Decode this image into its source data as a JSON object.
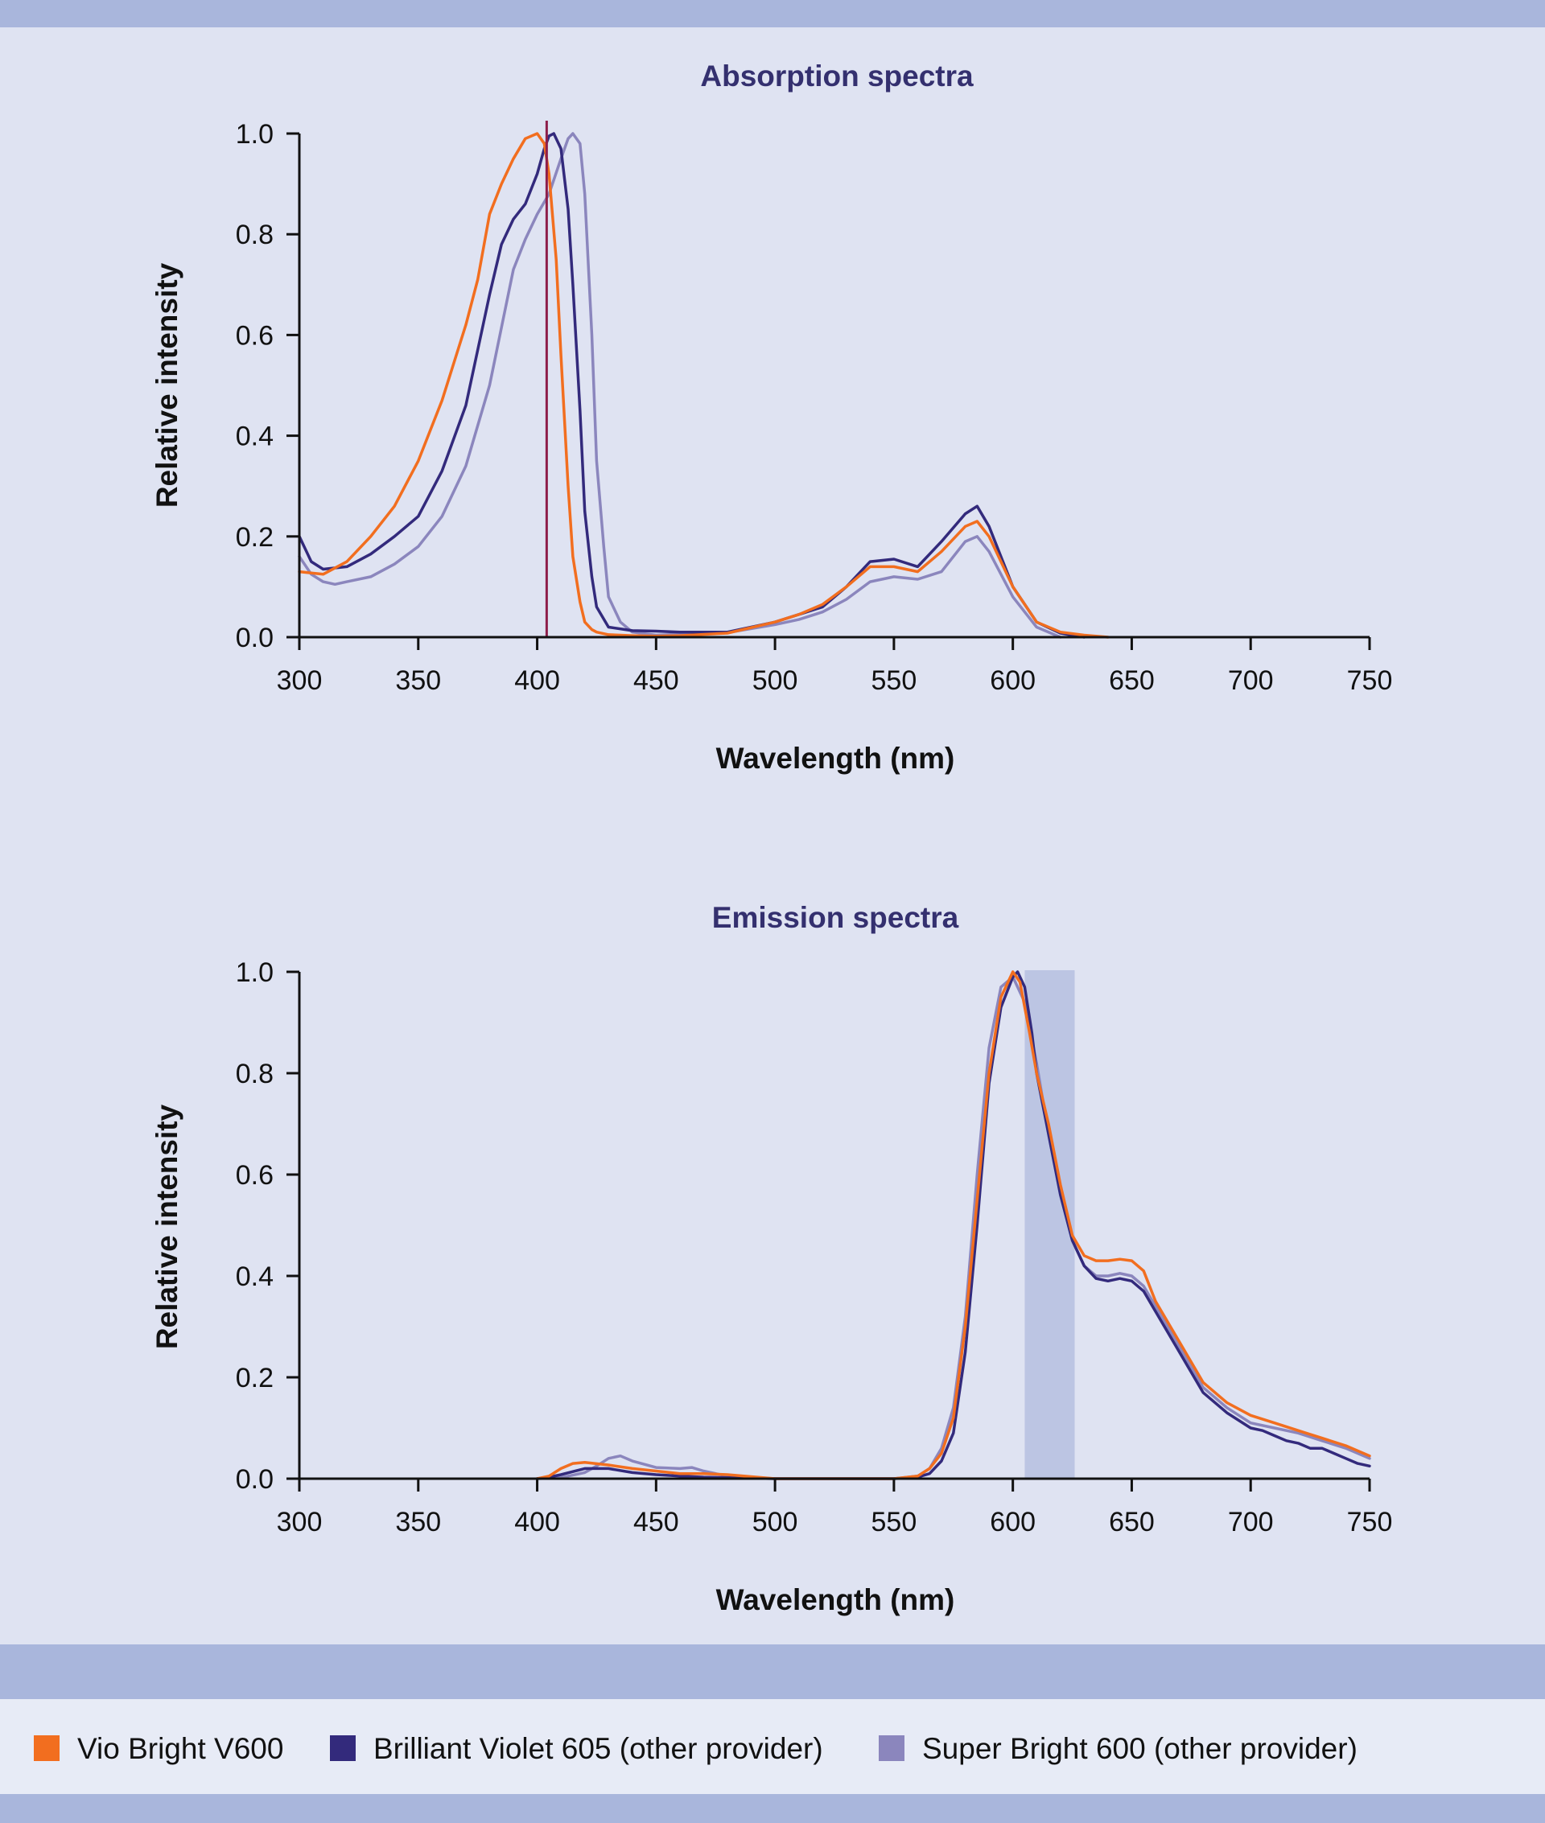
{
  "colors": {
    "vio": "#f26e1f",
    "bv605": "#332a7c",
    "sb600": "#8b86bd",
    "excitation_line": "#8e1e4a",
    "filter_band": "#bcc5e3"
  },
  "legend": [
    {
      "label": "Vio Bright V600",
      "color": "#f26e1f"
    },
    {
      "label": "Brilliant Violet 605 (other provider)",
      "color": "#332a7c"
    },
    {
      "label": "Super Bright 600 (other provider)",
      "color": "#8b86bd"
    }
  ],
  "chart_data": [
    {
      "type": "line",
      "title": "Absorption spectra",
      "xlabel": "Wavelength (nm)",
      "ylabel": "Relative intensity",
      "xlim": [
        300,
        750
      ],
      "ylim": [
        0,
        1.0
      ],
      "xticks": [
        "300",
        "350",
        "400",
        "450",
        "500",
        "550",
        "600",
        "650",
        "700",
        "750"
      ],
      "yticks": [
        "0.0",
        "0.2",
        "0.4",
        "0.6",
        "0.8",
        "1.0"
      ],
      "vline_nm": 404,
      "series": [
        {
          "name": "Vio Bright V600",
          "color": "#f26e1f",
          "x": [
            300,
            310,
            320,
            330,
            340,
            350,
            360,
            370,
            375,
            380,
            385,
            390,
            395,
            400,
            403,
            405,
            408,
            410,
            413,
            415,
            418,
            420,
            423,
            425,
            430,
            440,
            450,
            460,
            480,
            500,
            510,
            520,
            530,
            540,
            550,
            560,
            570,
            580,
            585,
            590,
            600,
            610,
            620,
            630,
            640
          ],
          "y": [
            0.13,
            0.125,
            0.15,
            0.2,
            0.26,
            0.35,
            0.47,
            0.62,
            0.71,
            0.84,
            0.9,
            0.95,
            0.99,
            1.0,
            0.98,
            0.92,
            0.75,
            0.56,
            0.3,
            0.16,
            0.07,
            0.03,
            0.015,
            0.01,
            0.005,
            0.003,
            0.002,
            0.003,
            0.008,
            0.03,
            0.045,
            0.065,
            0.1,
            0.14,
            0.14,
            0.13,
            0.17,
            0.22,
            0.23,
            0.2,
            0.1,
            0.03,
            0.01,
            0.004,
            0.0
          ]
        },
        {
          "name": "Brilliant Violet 605 (other provider)",
          "color": "#332a7c",
          "x": [
            300,
            305,
            310,
            320,
            330,
            340,
            350,
            360,
            370,
            380,
            385,
            390,
            395,
            400,
            403,
            405,
            407,
            410,
            413,
            415,
            418,
            420,
            423,
            425,
            430,
            440,
            450,
            460,
            480,
            500,
            510,
            520,
            530,
            540,
            550,
            560,
            570,
            580,
            585,
            590,
            600,
            610,
            620,
            630
          ],
          "y": [
            0.2,
            0.15,
            0.135,
            0.14,
            0.165,
            0.2,
            0.24,
            0.33,
            0.46,
            0.68,
            0.78,
            0.83,
            0.86,
            0.92,
            0.97,
            0.995,
            1.0,
            0.97,
            0.85,
            0.7,
            0.45,
            0.25,
            0.12,
            0.06,
            0.02,
            0.013,
            0.012,
            0.01,
            0.01,
            0.03,
            0.045,
            0.06,
            0.1,
            0.15,
            0.155,
            0.14,
            0.19,
            0.245,
            0.26,
            0.22,
            0.1,
            0.03,
            0.008,
            0.0
          ]
        },
        {
          "name": "Super Bright 600 (other provider)",
          "color": "#8b86bd",
          "x": [
            300,
            305,
            310,
            315,
            320,
            330,
            340,
            350,
            360,
            370,
            380,
            390,
            395,
            400,
            405,
            410,
            413,
            415,
            418,
            420,
            423,
            425,
            428,
            430,
            435,
            440,
            450,
            460,
            480,
            500,
            510,
            520,
            530,
            540,
            550,
            560,
            570,
            580,
            585,
            590,
            600,
            610,
            620
          ],
          "y": [
            0.16,
            0.125,
            0.11,
            0.105,
            0.11,
            0.12,
            0.145,
            0.18,
            0.24,
            0.34,
            0.5,
            0.73,
            0.79,
            0.84,
            0.88,
            0.95,
            0.99,
            1.0,
            0.98,
            0.88,
            0.6,
            0.35,
            0.18,
            0.08,
            0.03,
            0.01,
            0.004,
            0.006,
            0.009,
            0.025,
            0.035,
            0.05,
            0.075,
            0.11,
            0.12,
            0.115,
            0.13,
            0.19,
            0.2,
            0.17,
            0.08,
            0.02,
            0.0
          ]
        }
      ]
    },
    {
      "type": "line",
      "title": "Emission spectra",
      "xlabel": "Wavelength (nm)",
      "ylabel": "Relative intensity",
      "xlim": [
        300,
        750
      ],
      "ylim": [
        0,
        1.0
      ],
      "xticks": [
        "300",
        "350",
        "400",
        "450",
        "500",
        "550",
        "600",
        "650",
        "700",
        "750"
      ],
      "yticks": [
        "0.0",
        "0.2",
        "0.4",
        "0.6",
        "0.8",
        "1.0"
      ],
      "band_nm": [
        605,
        626
      ],
      "series": [
        {
          "name": "Vio Bright V600",
          "color": "#f26e1f",
          "x": [
            400,
            405,
            410,
            415,
            420,
            430,
            440,
            450,
            460,
            470,
            480,
            500,
            550,
            560,
            565,
            570,
            575,
            580,
            585,
            590,
            595,
            600,
            603,
            607,
            610,
            615,
            620,
            625,
            630,
            635,
            640,
            645,
            650,
            655,
            660,
            670,
            680,
            690,
            700,
            710,
            720,
            730,
            740,
            750
          ],
          "y": [
            0.0,
            0.005,
            0.02,
            0.03,
            0.032,
            0.027,
            0.02,
            0.015,
            0.01,
            0.01,
            0.008,
            0.0,
            0.0,
            0.005,
            0.02,
            0.05,
            0.12,
            0.3,
            0.55,
            0.8,
            0.95,
            1.0,
            0.98,
            0.88,
            0.8,
            0.7,
            0.58,
            0.48,
            0.44,
            0.43,
            0.43,
            0.433,
            0.43,
            0.41,
            0.35,
            0.27,
            0.19,
            0.15,
            0.125,
            0.11,
            0.095,
            0.08,
            0.065,
            0.045
          ]
        },
        {
          "name": "Brilliant Violet 605 (other provider)",
          "color": "#332a7c",
          "x": [
            400,
            405,
            410,
            420,
            430,
            440,
            450,
            460,
            470,
            480,
            500,
            550,
            560,
            565,
            570,
            575,
            580,
            585,
            590,
            595,
            600,
            602,
            605,
            608,
            610,
            615,
            620,
            625,
            630,
            635,
            640,
            645,
            650,
            655,
            660,
            670,
            680,
            690,
            700,
            705,
            710,
            715,
            720,
            725,
            730,
            735,
            740,
            745,
            750
          ],
          "y": [
            0.0,
            0.003,
            0.008,
            0.02,
            0.02,
            0.012,
            0.008,
            0.005,
            0.003,
            0.002,
            0.0,
            0.0,
            0.003,
            0.01,
            0.035,
            0.09,
            0.25,
            0.5,
            0.78,
            0.93,
            0.99,
            1.0,
            0.97,
            0.88,
            0.8,
            0.68,
            0.56,
            0.47,
            0.42,
            0.395,
            0.39,
            0.395,
            0.39,
            0.37,
            0.33,
            0.25,
            0.17,
            0.13,
            0.1,
            0.095,
            0.085,
            0.075,
            0.07,
            0.06,
            0.06,
            0.05,
            0.04,
            0.03,
            0.025
          ]
        },
        {
          "name": "Super Bright 600 (other provider)",
          "color": "#8b86bd",
          "x": [
            400,
            410,
            420,
            425,
            430,
            435,
            440,
            450,
            460,
            465,
            470,
            480,
            500,
            550,
            560,
            565,
            570,
            575,
            580,
            585,
            590,
            595,
            600,
            605,
            610,
            615,
            620,
            625,
            630,
            635,
            640,
            645,
            650,
            655,
            660,
            670,
            680,
            690,
            700,
            710,
            720,
            730,
            740,
            750
          ],
          "y": [
            0.0,
            0.002,
            0.012,
            0.025,
            0.04,
            0.045,
            0.035,
            0.022,
            0.02,
            0.022,
            0.015,
            0.005,
            0.0,
            0.0,
            0.005,
            0.02,
            0.06,
            0.14,
            0.32,
            0.6,
            0.85,
            0.97,
            0.99,
            0.94,
            0.82,
            0.68,
            0.56,
            0.47,
            0.42,
            0.4,
            0.4,
            0.405,
            0.4,
            0.38,
            0.34,
            0.26,
            0.18,
            0.14,
            0.11,
            0.1,
            0.09,
            0.075,
            0.06,
            0.04
          ]
        }
      ]
    }
  ]
}
